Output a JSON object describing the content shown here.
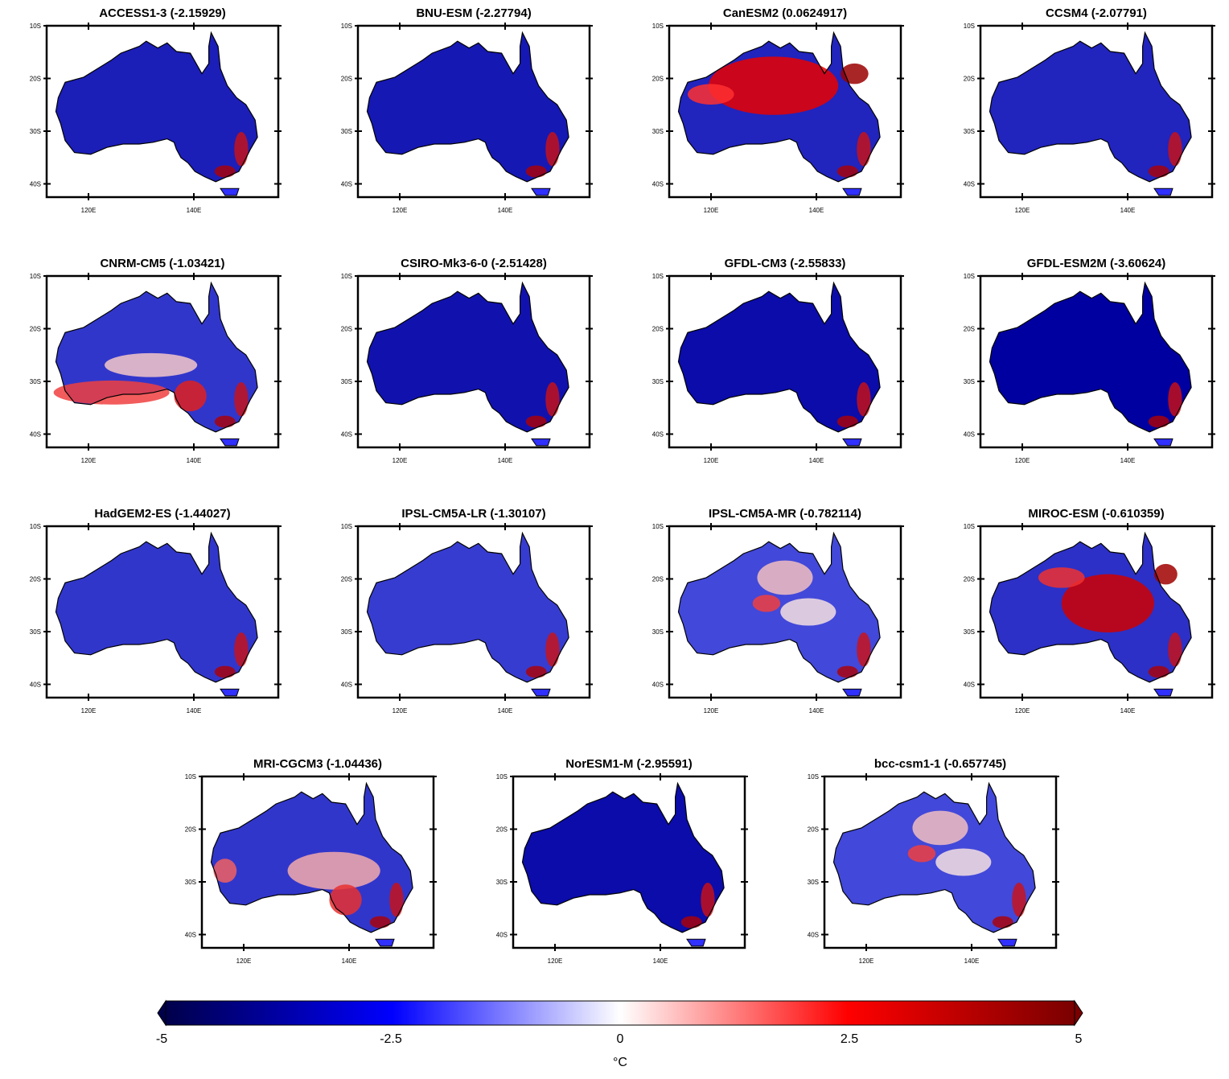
{
  "panels": [
    {
      "model": "ACCESS1-3",
      "value": "(-2.15929)",
      "pattern": "cool",
      "strength": 0.75
    },
    {
      "model": "BNU-ESM",
      "value": "(-2.27794)",
      "pattern": "cool",
      "strength": 0.8
    },
    {
      "model": "CanESM2",
      "value": "(0.0624917)",
      "pattern": "warm-north",
      "strength": 0.7
    },
    {
      "model": "CCSM4",
      "value": "(-2.07791)",
      "pattern": "cool",
      "strength": 0.7
    },
    {
      "model": "CNRM-CM5",
      "value": "(-1.03421)",
      "pattern": "warm-south",
      "strength": 0.55
    },
    {
      "model": "CSIRO-Mk3-6-0",
      "value": "(-2.51428)",
      "pattern": "cool",
      "strength": 0.85
    },
    {
      "model": "GFDL-CM3",
      "value": "(-2.55833)",
      "pattern": "cool",
      "strength": 0.9
    },
    {
      "model": "GFDL-ESM2M",
      "value": "(-3.60624)",
      "pattern": "cool",
      "strength": 1.0
    },
    {
      "model": "HadGEM2-ES",
      "value": "(-1.44027)",
      "pattern": "cool",
      "strength": 0.55
    },
    {
      "model": "IPSL-CM5A-LR",
      "value": "(-1.30107)",
      "pattern": "cool",
      "strength": 0.5
    },
    {
      "model": "IPSL-CM5A-MR",
      "value": "(-0.782114)",
      "pattern": "mixed",
      "strength": 0.4
    },
    {
      "model": "MIROC-ESM",
      "value": "(-0.610359)",
      "pattern": "warm-center",
      "strength": 0.6
    },
    {
      "model": "MRI-CGCM3",
      "value": "(-1.04436)",
      "pattern": "warm-southeast",
      "strength": 0.55
    },
    {
      "model": "NorESM1-M",
      "value": "(-2.95591)",
      "pattern": "cool",
      "strength": 0.9
    },
    {
      "model": "bcc-csm1-1",
      "value": "(-0.657745)",
      "pattern": "mixed",
      "strength": 0.4
    }
  ],
  "axes": {
    "lat_labels": [
      "10S",
      "20S",
      "30S",
      "40S"
    ],
    "lon_labels": [
      "120E",
      "140E"
    ]
  },
  "colorbar": {
    "min": -5,
    "max": 5,
    "tick_labels": [
      "-5",
      "-2.5",
      "0",
      "2.5",
      "5"
    ],
    "unit": "°C",
    "colors": {
      "low": "#00004a",
      "mid_low": "#0000ff",
      "mid": "#ffffff",
      "mid_high": "#ff0000",
      "high": "#7a0000"
    }
  }
}
